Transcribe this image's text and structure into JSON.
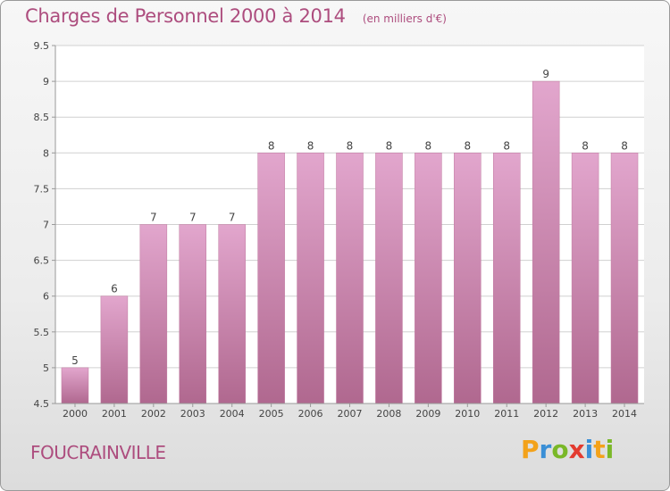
{
  "header": {
    "title": "Charges de Personnel 2000 à 2014",
    "subtitle": "(en milliers d'€)"
  },
  "footer": {
    "commune": "FOUCRAINVILLE",
    "logo_text": "Proxiti"
  },
  "colors": {
    "bar_top": "#e2a6cd",
    "bar_bottom": "#b0688f",
    "bar_edge": "#c07aa0",
    "title": "#ad4d7e",
    "grid": "#d0d0d0",
    "axis": "#999999"
  },
  "chart_data": {
    "type": "bar",
    "title": "Charges de Personnel 2000 à 2014",
    "subtitle": "(en milliers d'€)",
    "categories": [
      "2000",
      "2001",
      "2002",
      "2003",
      "2004",
      "2005",
      "2006",
      "2007",
      "2008",
      "2009",
      "2010",
      "2011",
      "2012",
      "2013",
      "2014"
    ],
    "values": [
      5,
      6,
      7,
      7,
      7,
      8,
      8,
      8,
      8,
      8,
      8,
      8,
      9,
      8,
      8
    ],
    "data_labels": [
      "5",
      "6",
      "7",
      "7",
      "7",
      "8",
      "8",
      "8",
      "8",
      "8",
      "8",
      "8",
      "9",
      "8",
      "8"
    ],
    "ylim": [
      4.5,
      9.5
    ],
    "yticks": [
      4.5,
      5,
      5.5,
      6,
      6.5,
      7,
      7.5,
      8,
      8.5,
      9,
      9.5
    ],
    "ytick_labels": [
      "4.5",
      "5",
      "5.5",
      "6",
      "6.5",
      "7",
      "7.5",
      "8",
      "8.5",
      "9",
      "9.5"
    ],
    "grid": true,
    "xlabel": "",
    "ylabel": ""
  }
}
